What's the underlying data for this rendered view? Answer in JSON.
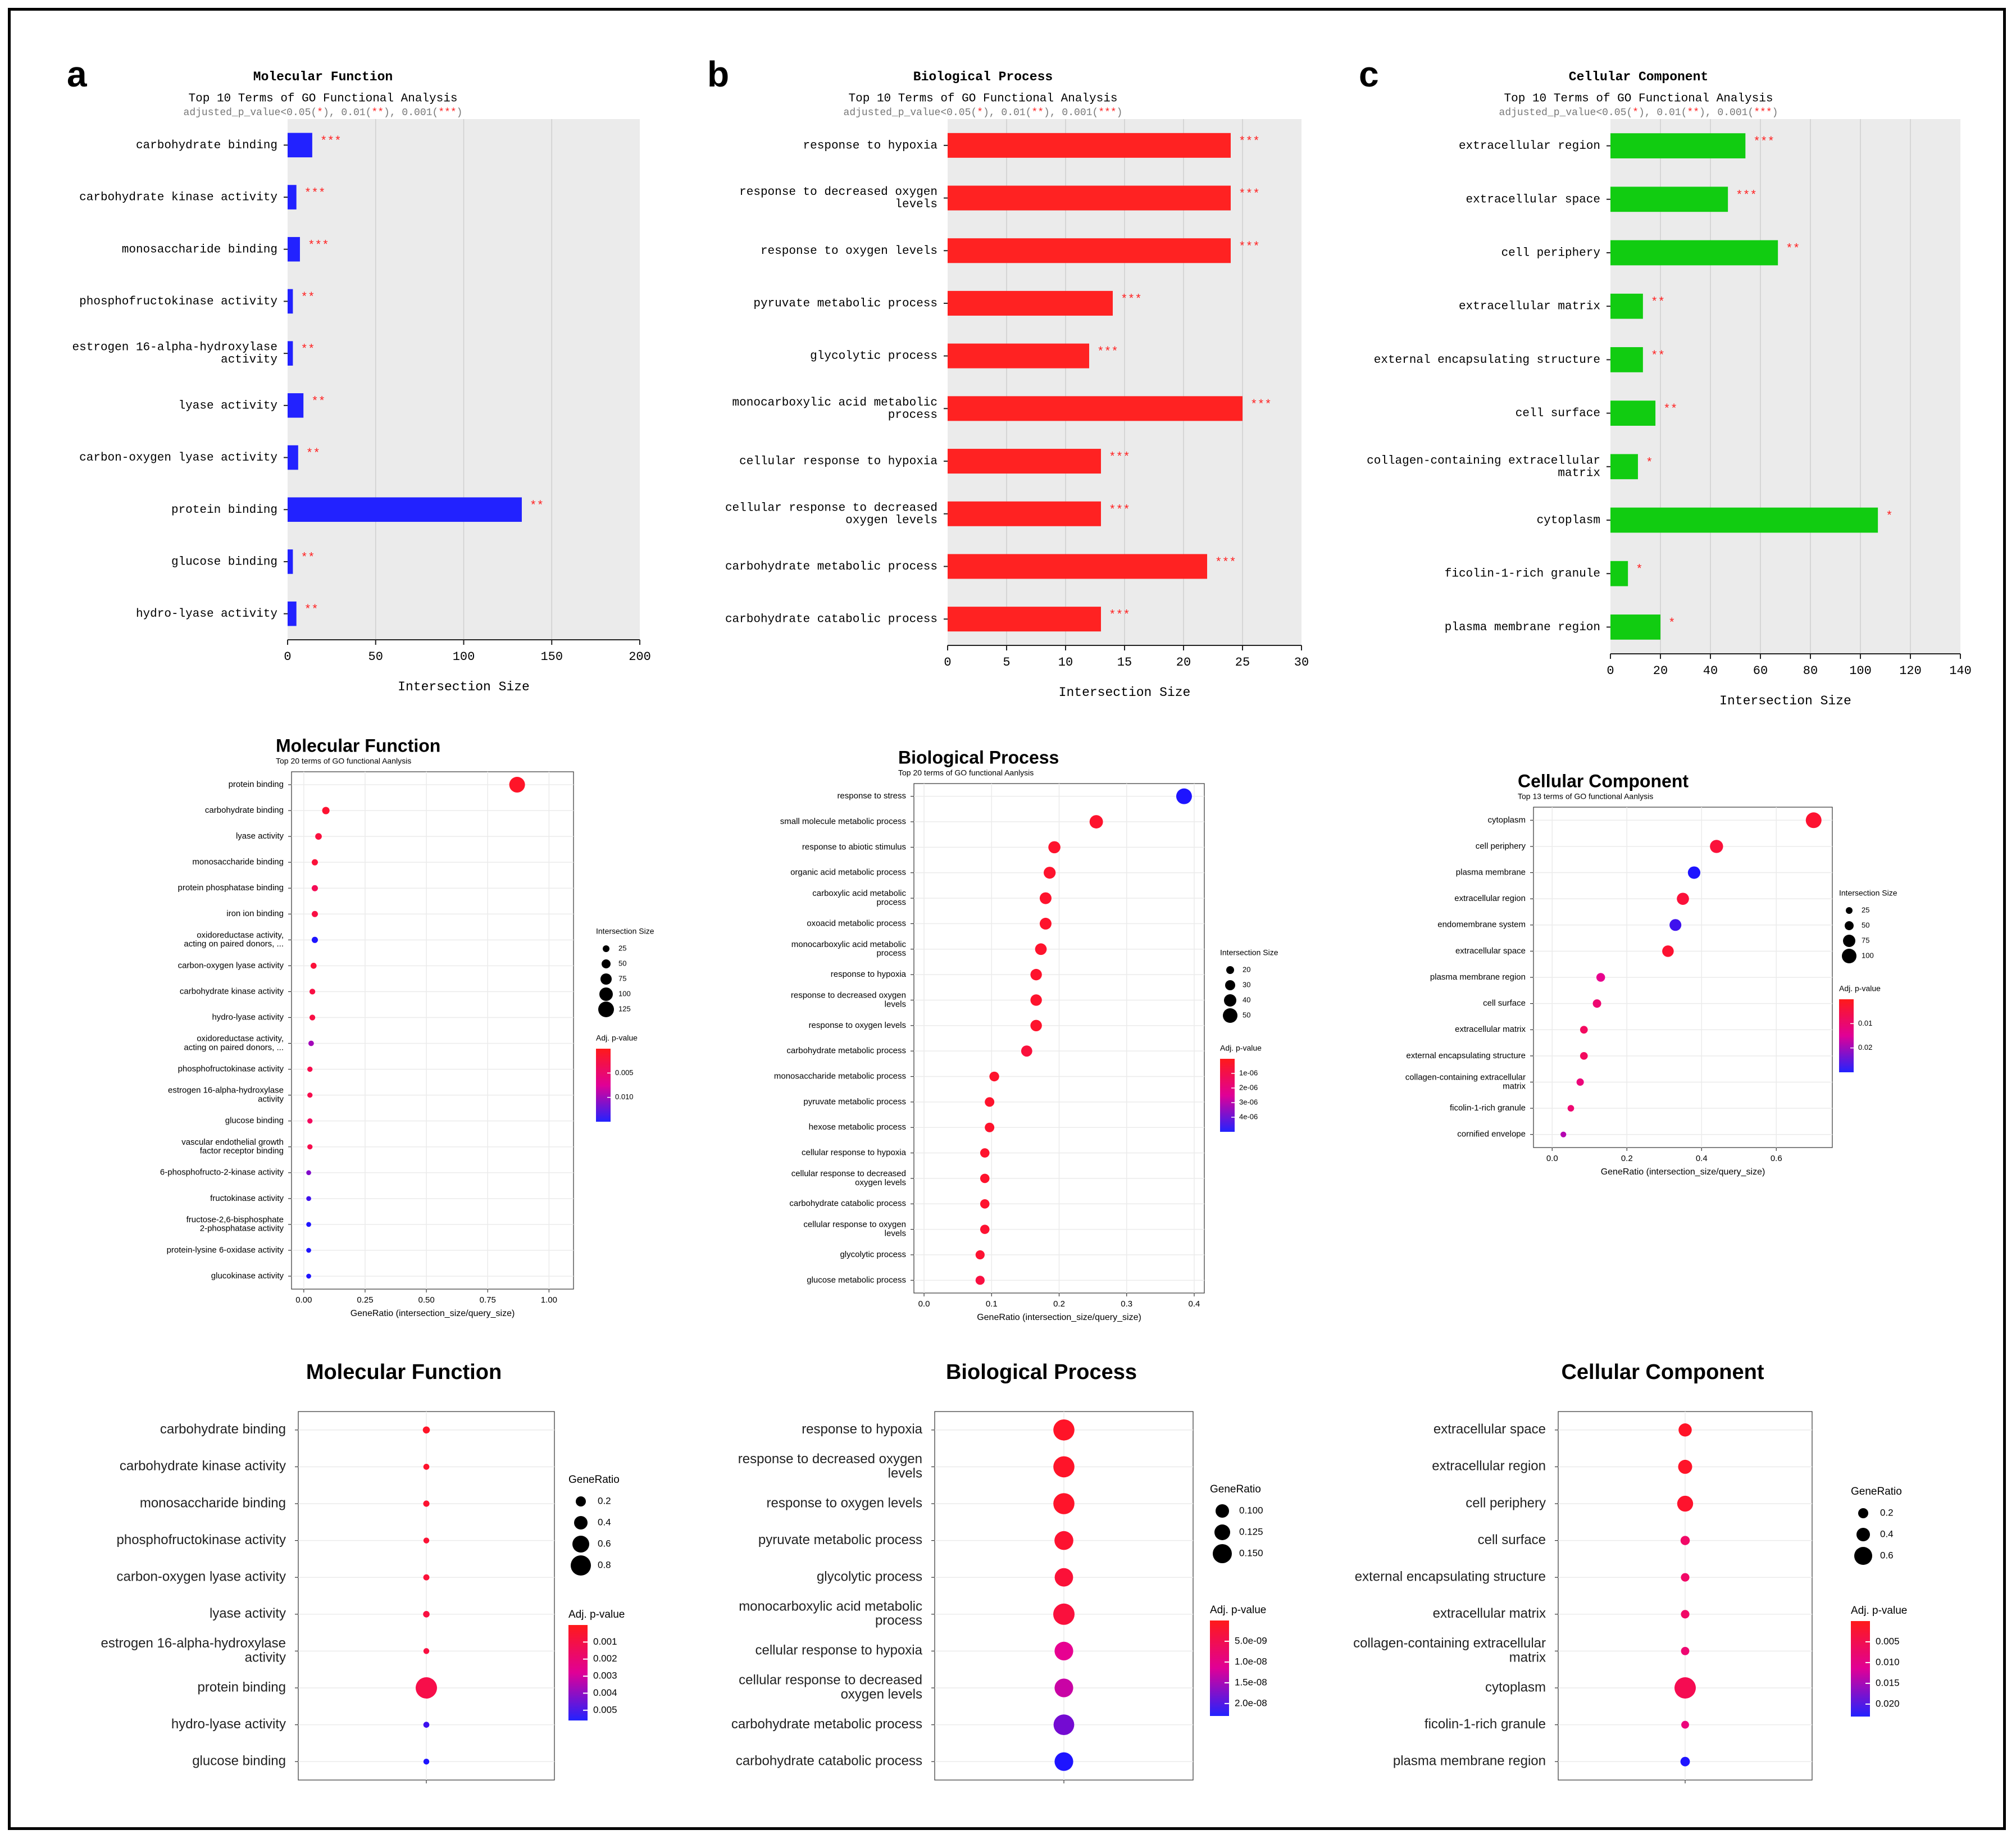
{
  "figure": {
    "panel_letters": [
      "a",
      "b",
      "c"
    ],
    "bar_subtitle": "Top 10 Terms of GO Functional Analysis",
    "sig_note": {
      "prefix": "adjusted_p_value<0.05(",
      "s1": "*",
      "mid1": "), 0.01(",
      "s2": "**",
      "mid2": "), 0.001(",
      "s3": "***",
      "suffix": ")"
    }
  },
  "chart_data": [
    {
      "id": "bar-mf",
      "type": "bar",
      "orientation": "horizontal",
      "title": "Molecular Function",
      "xlabel": "Intersection Size",
      "color": "#2222ff",
      "xlim": [
        0,
        200
      ],
      "xticks": [
        0,
        50,
        100,
        150,
        200
      ],
      "categories": [
        "carbohydrate binding",
        "carbohydrate kinase activity",
        "monosaccharide binding",
        "phosphofructokinase activity",
        "estrogen 16-alpha-hydroxylase\nactivity",
        "lyase activity",
        "carbon-oxygen lyase activity",
        "protein binding",
        "glucose binding",
        "hydro-lyase activity"
      ],
      "values": [
        14,
        5,
        7,
        3,
        3,
        9,
        6,
        133,
        3,
        5
      ],
      "significance": [
        "***",
        "***",
        "***",
        "**",
        "**",
        "**",
        "**",
        "**",
        "**",
        "**"
      ]
    },
    {
      "id": "bar-bp",
      "type": "bar",
      "orientation": "horizontal",
      "title": "Biological Process",
      "xlabel": "Intersection Size",
      "color": "#ff2222",
      "xlim": [
        0,
        30
      ],
      "xticks": [
        0,
        5,
        10,
        15,
        20,
        25,
        30
      ],
      "categories": [
        "response to hypoxia",
        "response to decreased oxygen\nlevels",
        "response to oxygen levels",
        "pyruvate metabolic process",
        "glycolytic process",
        "monocarboxylic acid metabolic\nprocess",
        "cellular response to hypoxia",
        "cellular response to decreased\noxygen levels",
        "carbohydrate metabolic process",
        "carbohydrate catabolic process"
      ],
      "values": [
        24,
        24,
        24,
        14,
        12,
        25,
        13,
        13,
        22,
        13
      ],
      "significance": [
        "***",
        "***",
        "***",
        "***",
        "***",
        "***",
        "***",
        "***",
        "***",
        "***"
      ]
    },
    {
      "id": "bar-cc",
      "type": "bar",
      "orientation": "horizontal",
      "title": "Cellular Component",
      "xlabel": "Intersection Size",
      "color": "#11cc11",
      "xlim": [
        0,
        140
      ],
      "xticks": [
        0,
        20,
        40,
        60,
        80,
        100,
        120,
        140
      ],
      "categories": [
        "extracellular region",
        "extracellular space",
        "cell periphery",
        "extracellular matrix",
        "external encapsulating structure",
        "cell surface",
        "collagen-containing extracellular\nmatrix",
        "cytoplasm",
        "ficolin-1-rich granule",
        "plasma membrane region"
      ],
      "values": [
        54,
        47,
        67,
        13,
        13,
        18,
        11,
        107,
        7,
        20
      ],
      "significance": [
        "***",
        "***",
        "**",
        "**",
        "**",
        "**",
        "*",
        "*",
        "*",
        "*"
      ]
    },
    {
      "id": "dot-mf",
      "type": "scatter",
      "title": "Molecular Function",
      "subtitle": "Top 20 terms of GO functional Aanlysis",
      "xlabel": "GeneRatio (intersection_size/query_size)",
      "xlim": [
        -0.05,
        1.1
      ],
      "xticks": [
        "0.00",
        "0.25",
        "0.50",
        "0.75",
        "1.00"
      ],
      "categories": [
        "protein binding",
        "carbohydrate binding",
        "lyase activity",
        "monosaccharide binding",
        "protein phosphatase binding",
        "iron ion binding",
        "oxidoreductase activity,\nacting on paired donors, ...",
        "carbon-oxygen lyase activity",
        "carbohydrate kinase activity",
        "hydro-lyase activity",
        "oxidoreductase activity,\nacting on paired donors, ...",
        "phosphofructokinase activity",
        "estrogen 16-alpha-hydroxylase\nactivity",
        "glucose binding",
        "vascular endothelial growth\nfactor receptor binding",
        "6-phosphofructo-2-kinase activity",
        "fructokinase activity",
        "fructose-2,6-bisphosphate\n2-phosphatase activity",
        "protein-lysine 6-oxidase activity",
        "glucokinase activity"
      ],
      "x": [
        0.87,
        0.09,
        0.06,
        0.045,
        0.045,
        0.045,
        0.045,
        0.04,
        0.035,
        0.035,
        0.03,
        0.025,
        0.025,
        0.025,
        0.025,
        0.02,
        0.02,
        0.02,
        0.02,
        0.02
      ],
      "size": [
        133,
        14,
        9,
        7,
        7,
        7,
        7,
        6,
        5,
        5,
        4,
        3,
        3,
        3,
        3,
        2,
        2,
        2,
        2,
        2
      ],
      "padj": [
        0.0,
        0.0005,
        0.0012,
        0.001,
        0.0025,
        0.0015,
        0.012,
        0.001,
        0.0015,
        0.0015,
        0.008,
        0.002,
        0.002,
        0.003,
        0.002,
        0.009,
        0.011,
        0.012,
        0.012,
        0.012
      ],
      "size_legend_title": "Intersection Size",
      "size_legend": [
        25,
        50,
        75,
        100,
        125
      ],
      "color_legend_title": "Adj. p-value",
      "color_ticks": [
        "0.005",
        "0.010"
      ]
    },
    {
      "id": "dot-bp",
      "type": "scatter",
      "title": "Biological Process",
      "subtitle": "Top 20 terms of GO functional Aanlysis",
      "xlabel": "GeneRatio (intersection_size/query_size)",
      "xlim": [
        -0.015,
        0.415
      ],
      "xticks": [
        "0.0",
        "0.1",
        "0.2",
        "0.3",
        "0.4"
      ],
      "categories": [
        "response to stress",
        "small molecule metabolic process",
        "response to abiotic stimulus",
        "organic acid metabolic process",
        "carboxylic acid metabolic\nprocess",
        "oxoacid metabolic process",
        "monocarboxylic acid metabolic\nprocess",
        "response to hypoxia",
        "response to decreased oxygen\nlevels",
        "response to oxygen levels",
        "carbohydrate metabolic process",
        "monosaccharide metabolic process",
        "pyruvate metabolic process",
        "hexose metabolic process",
        "cellular response to hypoxia",
        "cellular response to decreased\noxygen levels",
        "carbohydrate catabolic process",
        "cellular response to oxygen\nlevels",
        "glycolytic process",
        "glucose metabolic process"
      ],
      "x": [
        0.385,
        0.255,
        0.193,
        0.186,
        0.18,
        0.18,
        0.173,
        0.166,
        0.166,
        0.166,
        0.152,
        0.104,
        0.097,
        0.097,
        0.09,
        0.09,
        0.09,
        0.09,
        0.083,
        0.083
      ],
      "size": [
        56,
        37,
        28,
        27,
        26,
        26,
        25,
        24,
        24,
        24,
        22,
        15,
        14,
        14,
        13,
        13,
        13,
        13,
        12,
        12
      ],
      "padj": [
        4.4e-06,
        1e-07,
        1e-07,
        1e-07,
        1e-07,
        1e-07,
        1e-07,
        1e-07,
        1e-07,
        1e-07,
        4e-07,
        1e-07,
        1e-07,
        1e-07,
        1e-07,
        1e-07,
        1e-07,
        2e-07,
        2e-07,
        5e-07
      ],
      "size_legend_title": "Intersection Size",
      "size_legend": [
        20,
        30,
        40,
        50
      ],
      "color_legend_title": "Adj. p-value",
      "color_ticks": [
        "1e-06",
        "2e-06",
        "3e-06",
        "4e-06"
      ]
    },
    {
      "id": "dot-cc",
      "type": "scatter",
      "title": "Cellular Component",
      "subtitle": "Top 13 terms of GO functional Aanlysis",
      "xlabel": "GeneRatio (intersection_size/query_size)",
      "xlim": [
        -0.05,
        0.75
      ],
      "xticks": [
        "0.0",
        "0.2",
        "0.4",
        "0.6"
      ],
      "categories": [
        "cytoplasm",
        "cell periphery",
        "plasma membrane",
        "extracellular region",
        "endomembrane system",
        "extracellular space",
        "plasma membrane region",
        "cell surface",
        "extracellular matrix",
        "external encapsulating structure",
        "collagen-containing extracellular\nmatrix",
        "ficolin-1-rich granule",
        "cornified envelope"
      ],
      "x": [
        0.7,
        0.44,
        0.38,
        0.35,
        0.33,
        0.31,
        0.13,
        0.12,
        0.085,
        0.085,
        0.075,
        0.05,
        0.03
      ],
      "size": [
        107,
        67,
        58,
        54,
        50,
        47,
        20,
        18,
        13,
        13,
        11,
        7,
        4
      ],
      "padj": [
        0.001,
        0.002,
        0.024,
        0.002,
        0.022,
        0.001,
        0.011,
        0.008,
        0.006,
        0.006,
        0.009,
        0.008,
        0.015
      ],
      "size_legend_title": "Intersection Size",
      "size_legend": [
        25,
        50,
        75,
        100
      ],
      "color_legend_title": "Adj. p-value",
      "color_ticks": [
        "0.01",
        "0.02"
      ]
    },
    {
      "id": "bub-mf",
      "type": "scatter",
      "title": "Molecular Function",
      "categories": [
        "carbohydrate binding",
        "carbohydrate kinase activity",
        "monosaccharide binding",
        "phosphofructokinase activity",
        "carbon-oxygen lyase activity",
        "lyase activity",
        "estrogen 16-alpha-hydroxylase\nactivity",
        "protein binding",
        "hydro-lyase activity",
        "glucose binding"
      ],
      "ratio": [
        0.12,
        0.04,
        0.06,
        0.03,
        0.05,
        0.08,
        0.03,
        0.87,
        0.04,
        0.03
      ],
      "padj": [
        0.0,
        0.0001,
        0.0002,
        0.0003,
        0.0004,
        0.0006,
        0.0006,
        0.0008,
        0.0048,
        0.0052
      ],
      "size_legend_title": "GeneRatio",
      "size_legend": [
        "0.2",
        "0.4",
        "0.6",
        "0.8"
      ],
      "color_legend_title": "Adj. p-value",
      "color_ticks": [
        "0.001",
        "0.002",
        "0.003",
        "0.004",
        "0.005"
      ]
    },
    {
      "id": "bub-bp",
      "type": "scatter",
      "title": "Biological Process",
      "categories": [
        "response to hypoxia",
        "response to decreased oxygen\nlevels",
        "response to oxygen levels",
        "pyruvate metabolic process",
        "glycolytic process",
        "monocarboxylic acid metabolic\nprocess",
        "cellular response to hypoxia",
        "cellular response to decreased\noxygen levels",
        "carbohydrate metabolic process",
        "carbohydrate catabolic process"
      ],
      "ratio": [
        0.166,
        0.166,
        0.166,
        0.097,
        0.083,
        0.173,
        0.09,
        0.09,
        0.152,
        0.09
      ],
      "padj": [
        0.0,
        1e-10,
        2e-10,
        8e-10,
        1.5e-09,
        2e-09,
        1e-08,
        1.2e-08,
        1.65e-08,
        2.1e-08
      ],
      "size_legend_title": "GeneRatio",
      "size_legend": [
        "0.100",
        "0.125",
        "0.150"
      ],
      "color_legend_title": "Adj. p-value",
      "color_ticks": [
        "5.0e-09",
        "1.0e-08",
        "1.5e-08",
        "2.0e-08"
      ]
    },
    {
      "id": "bub-cc",
      "type": "scatter",
      "title": "Cellular Component",
      "categories": [
        "extracellular space",
        "extracellular region",
        "cell periphery",
        "cell surface",
        "external encapsulating structure",
        "extracellular matrix",
        "collagen-containing extracellular\nmatrix",
        "cytoplasm",
        "ficolin-1-rich granule",
        "plasma membrane region"
      ],
      "ratio": [
        0.31,
        0.35,
        0.44,
        0.12,
        0.085,
        0.085,
        0.075,
        0.7,
        0.05,
        0.13
      ],
      "padj": [
        0.0,
        0.0001,
        0.0005,
        0.006,
        0.006,
        0.006,
        0.007,
        0.004,
        0.008,
        0.021
      ],
      "size_legend_title": "GeneRatio",
      "size_legend": [
        "0.2",
        "0.4",
        "0.6"
      ],
      "color_legend_title": "Adj. p-value",
      "color_ticks": [
        "0.005",
        "0.010",
        "0.015",
        "0.020"
      ]
    }
  ]
}
